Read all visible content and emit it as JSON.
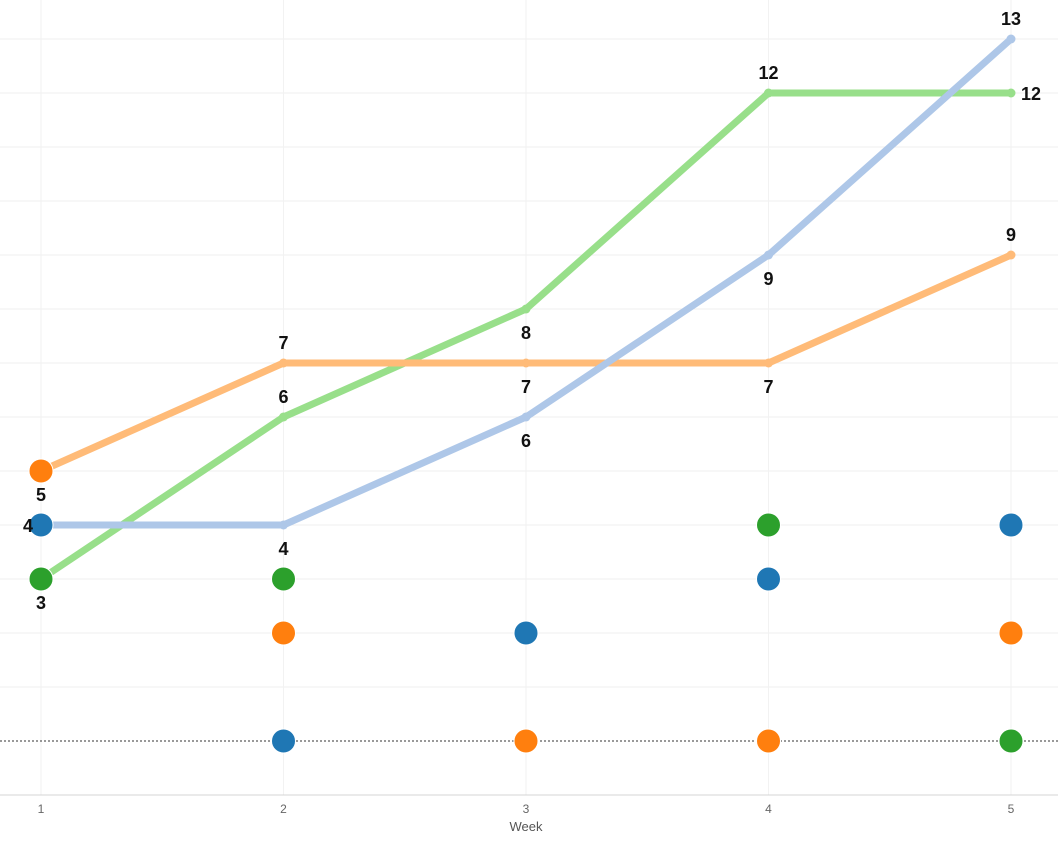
{
  "chart_data": {
    "type": "line",
    "xlabel": "Week",
    "x": [
      1,
      2,
      3,
      4,
      5
    ],
    "ylim": [
      -1,
      13.75
    ],
    "grid": true,
    "legend": "none",
    "series": [
      {
        "color": "#98DF8A",
        "values": [
          3,
          6,
          8,
          12,
          12
        ]
      },
      {
        "color": "#FFBB78",
        "values": [
          5,
          7,
          7,
          7,
          9
        ]
      },
      {
        "color": "#AEC7E8",
        "values": [
          4,
          4,
          6,
          9,
          13
        ]
      }
    ],
    "dots": [
      {
        "x": 1,
        "y": 5,
        "color": "#FF7F0E"
      },
      {
        "x": 1,
        "y": 4,
        "color": "#1F77B4"
      },
      {
        "x": 1,
        "y": 3,
        "color": "#2CA02C"
      },
      {
        "x": 2,
        "y": 3,
        "color": "#2CA02C"
      },
      {
        "x": 2,
        "y": 2,
        "color": "#FF7F0E"
      },
      {
        "x": 2,
        "y": 0,
        "color": "#1F77B4"
      },
      {
        "x": 3,
        "y": 2,
        "color": "#1F77B4"
      },
      {
        "x": 3,
        "y": 0,
        "color": "#FF7F0E"
      },
      {
        "x": 4,
        "y": 4,
        "color": "#2CA02C"
      },
      {
        "x": 4,
        "y": 3,
        "color": "#1F77B4"
      },
      {
        "x": 4,
        "y": 0,
        "color": "#FF7F0E"
      },
      {
        "x": 5,
        "y": 4,
        "color": "#1F77B4"
      },
      {
        "x": 5,
        "y": 2,
        "color": "#FF7F0E"
      },
      {
        "x": 5,
        "y": 0,
        "color": "#2CA02C"
      }
    ],
    "reference_line": {
      "y": 0,
      "style": "dotted"
    },
    "labels": [
      {
        "x": 1,
        "y": 5,
        "text": "5",
        "pos": "below"
      },
      {
        "x": 1,
        "y": 4,
        "text": "4",
        "pos": "left"
      },
      {
        "x": 1,
        "y": 3,
        "text": "3",
        "pos": "below"
      },
      {
        "x": 2,
        "y": 7,
        "text": "7",
        "pos": "above"
      },
      {
        "x": 2,
        "y": 6,
        "text": "6",
        "pos": "above"
      },
      {
        "x": 2,
        "y": 4,
        "text": "4",
        "pos": "below"
      },
      {
        "x": 3,
        "y": 8,
        "text": "8",
        "pos": "below"
      },
      {
        "x": 3,
        "y": 7,
        "text": "7",
        "pos": "below"
      },
      {
        "x": 3,
        "y": 6,
        "text": "6",
        "pos": "below"
      },
      {
        "x": 4,
        "y": 12,
        "text": "12",
        "pos": "above"
      },
      {
        "x": 4,
        "y": 9,
        "text": "9",
        "pos": "below"
      },
      {
        "x": 4,
        "y": 7,
        "text": "7",
        "pos": "below"
      },
      {
        "x": 5,
        "y": 13,
        "text": "13",
        "pos": "above"
      },
      {
        "x": 5,
        "y": 12,
        "text": "12",
        "pos": "right"
      },
      {
        "x": 5,
        "y": 9,
        "text": "9",
        "pos": "above"
      }
    ]
  }
}
